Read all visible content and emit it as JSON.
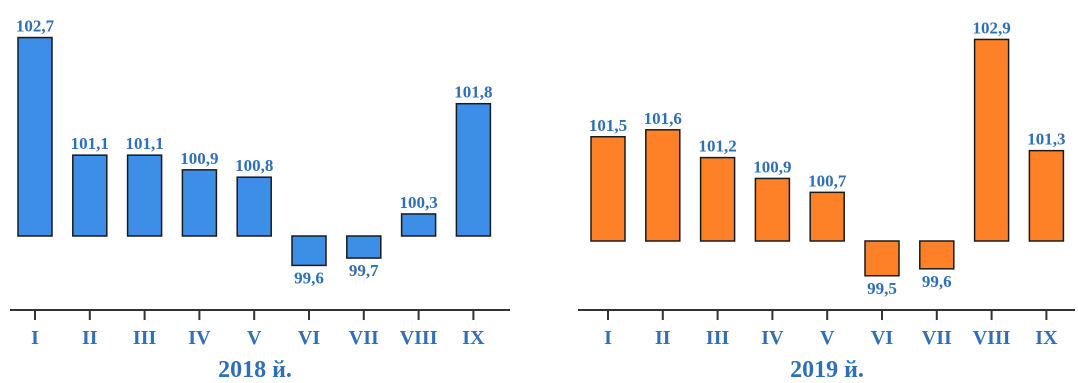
{
  "chart_data": [
    {
      "type": "bar",
      "title": "2018 й.",
      "categories": [
        "I",
        "II",
        "III",
        "IV",
        "V",
        "VI",
        "VII",
        "VIII",
        "IX"
      ],
      "values": [
        102.7,
        101.1,
        101.1,
        100.9,
        100.8,
        99.6,
        99.7,
        100.3,
        101.8
      ],
      "value_labels": [
        "102,7",
        "101,1",
        "101,1",
        "100,9",
        "100,8",
        "99,6",
        "99,7",
        "100,3",
        "101,8"
      ],
      "baseline": 100,
      "color": "#3d8ee6",
      "xlabel": "",
      "ylabel": "",
      "grid": false
    },
    {
      "type": "bar",
      "title": "2019 й.",
      "categories": [
        "I",
        "II",
        "III",
        "IV",
        "V",
        "VI",
        "VII",
        "VIII",
        "IX"
      ],
      "values": [
        101.5,
        101.6,
        101.2,
        100.9,
        100.7,
        99.5,
        99.6,
        102.9,
        101.3
      ],
      "value_labels": [
        "101,5",
        "101,6",
        "101,2",
        "100,9",
        "100,7",
        "99,5",
        "99,6",
        "102,9",
        "101,3"
      ],
      "baseline": 100,
      "color": "#ff8127",
      "xlabel": "",
      "ylabel": "",
      "grid": false
    }
  ]
}
